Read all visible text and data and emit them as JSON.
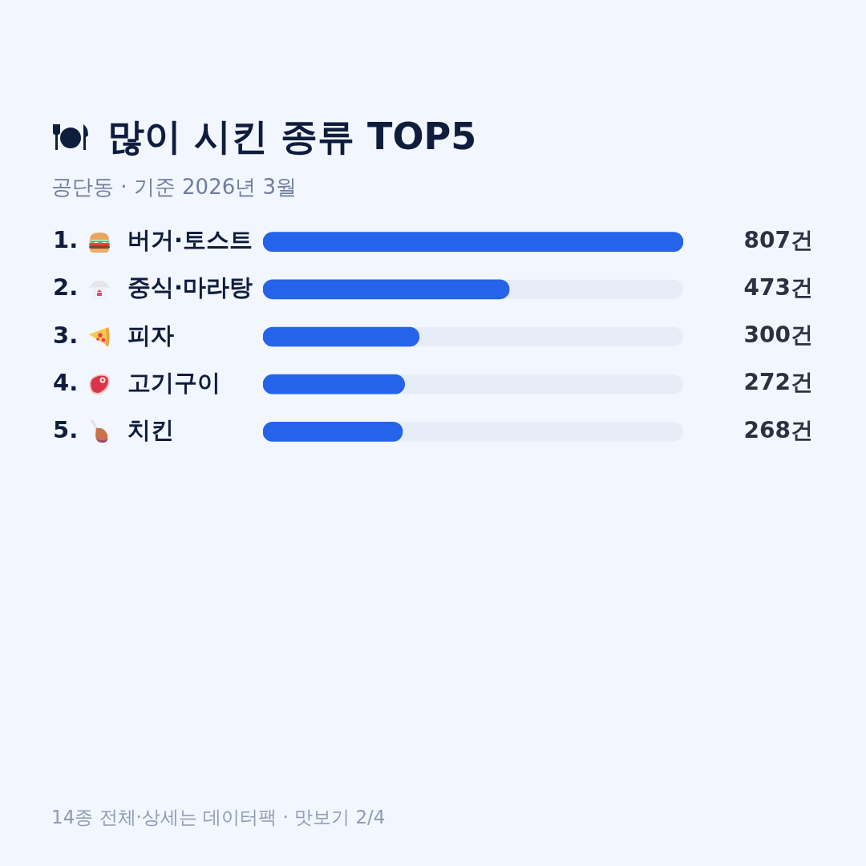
{
  "chart_data": {
    "type": "bar",
    "orientation": "horizontal",
    "title": "많이 시킨 종류 TOP5",
    "subtitle": "공단동 · 기준 2026년 3월",
    "categories": [
      "1. 버거·토스트",
      "2. 중식·마라탕",
      "3. 피자",
      "4. 고기구이",
      "5. 치킨"
    ],
    "values": [
      807,
      473,
      300,
      272,
      268
    ],
    "value_labels": [
      "807건",
      "473건",
      "300건",
      "272건",
      "268건"
    ],
    "color": "#2563eb",
    "xlim": [
      0,
      807
    ],
    "tick_labels": "y",
    "grid": false,
    "legend": false,
    "annotations": [
      "14종 전체·상세는 데이터팩 · 맛보기 2/4"
    ]
  }
}
